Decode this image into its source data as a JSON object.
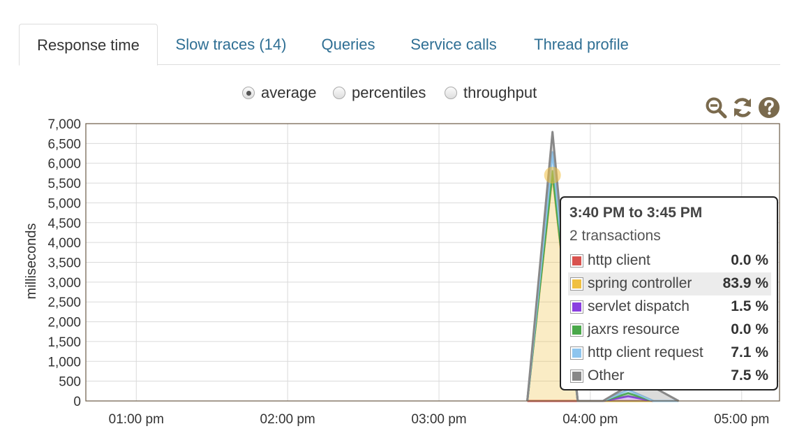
{
  "tabs": [
    {
      "label": "Response time",
      "active": true
    },
    {
      "label": "Slow traces (14)",
      "active": false
    },
    {
      "label": "Queries",
      "active": false
    },
    {
      "label": "Service calls",
      "active": false
    },
    {
      "label": "Thread profile",
      "active": false
    }
  ],
  "view_options": [
    {
      "label": "average",
      "selected": true
    },
    {
      "label": "percentiles",
      "selected": false
    },
    {
      "label": "throughput",
      "selected": false
    }
  ],
  "toolbar_icons": [
    "zoom-out-icon",
    "refresh-icon",
    "help-icon"
  ],
  "chart_data": {
    "type": "area",
    "stacked": true,
    "ylabel": "milliseconds",
    "ylim": [
      0,
      7000
    ],
    "yticks": [
      "0",
      "500",
      "1,000",
      "1,500",
      "2,000",
      "2,500",
      "3,000",
      "3,500",
      "4,000",
      "4,500",
      "5,000",
      "5,500",
      "6,000",
      "6,500",
      "7,000"
    ],
    "xticks": [
      "01:00 pm",
      "02:00 pm",
      "03:00 pm",
      "04:00 pm",
      "05:00 pm"
    ],
    "xlim": [
      "12:40 pm",
      "05:15 pm"
    ],
    "grid": true,
    "x": [
      "03:35 pm",
      "03:45 pm",
      "03:55 pm",
      "04:05 pm",
      "04:15 pm",
      "04:25 pm",
      "04:35 pm"
    ],
    "series": [
      {
        "name": "http client",
        "color": "#d9534f",
        "values": [
          0,
          0,
          0,
          0,
          0,
          0,
          0
        ]
      },
      {
        "name": "spring controller",
        "color": "#f0c040",
        "values": [
          0,
          5700,
          0,
          0,
          0,
          0,
          0
        ]
      },
      {
        "name": "servlet dispatch",
        "color": "#8a3fe0",
        "values": [
          0,
          100,
          0,
          0,
          120,
          0,
          0
        ]
      },
      {
        "name": "jaxrs resource",
        "color": "#4aa84a",
        "values": [
          0,
          0,
          0,
          0,
          80,
          0,
          0
        ]
      },
      {
        "name": "http client request",
        "color": "#8ec5ee",
        "values": [
          0,
          480,
          0,
          0,
          80,
          0,
          0
        ]
      },
      {
        "name": "Other",
        "color": "#888888",
        "values": [
          0,
          510,
          0,
          0,
          100,
          350,
          0
        ]
      }
    ],
    "highlight_point": {
      "x": "03:45 pm",
      "y": 5700,
      "color": "#f0c040"
    }
  },
  "tooltip": {
    "title": "3:40 PM to 3:45 PM",
    "subtitle": "2 transactions",
    "rows": [
      {
        "name": "http client",
        "pct": "0.0 %",
        "color": "#d9534f",
        "highlight": false
      },
      {
        "name": "spring controller",
        "pct": "83.9 %",
        "color": "#f0c040",
        "highlight": true
      },
      {
        "name": "servlet dispatch",
        "pct": "1.5 %",
        "color": "#8a3fe0",
        "highlight": false
      },
      {
        "name": "jaxrs resource",
        "pct": "0.0 %",
        "color": "#4aa84a",
        "highlight": false
      },
      {
        "name": "http client request",
        "pct": "7.1 %",
        "color": "#8ec5ee",
        "highlight": false
      },
      {
        "name": "Other",
        "pct": "7.5 %",
        "color": "#888888",
        "highlight": false
      }
    ]
  }
}
